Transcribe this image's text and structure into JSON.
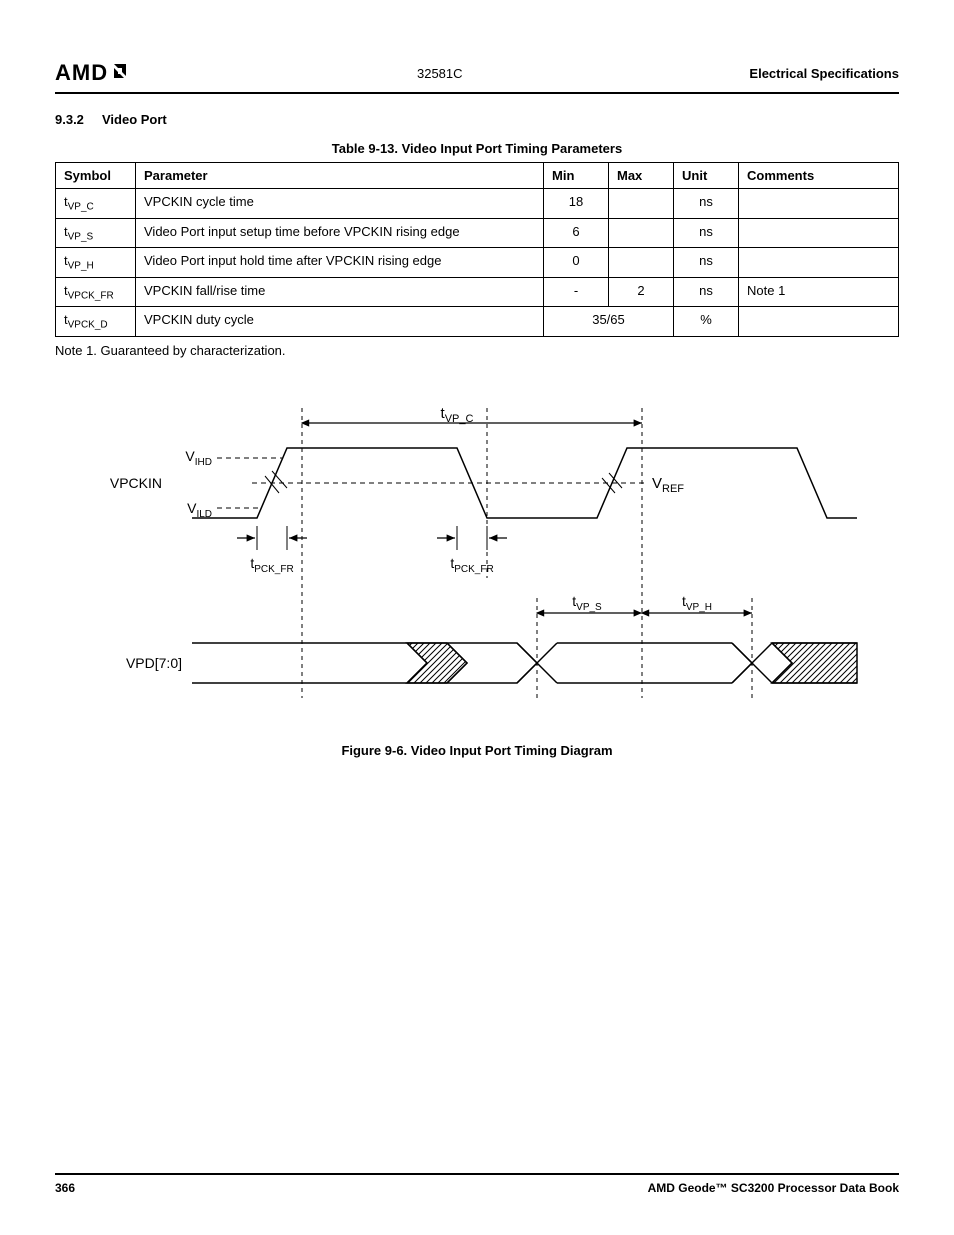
{
  "header": {
    "logo_text": "AMD",
    "doc_code": "32581C",
    "section_label": "Electrical Specifications"
  },
  "subsection": {
    "number": "9.3.2",
    "title": "Video Port"
  },
  "table": {
    "caption": "Table 9-13.  Video Input Port Timing Parameters",
    "headers": {
      "symbol": "Symbol",
      "parameter": "Parameter",
      "min": "Min",
      "max": "Max",
      "unit": "Unit",
      "comments": "Comments"
    },
    "rows": [
      {
        "sym_pre": "t",
        "sym_sub": "VP_C",
        "param": "VPCKIN cycle time",
        "min": "18",
        "max": "",
        "unit": "ns",
        "comments": ""
      },
      {
        "sym_pre": "t",
        "sym_sub": "VP_S",
        "param": "Video Port input setup time before VPCKIN rising edge",
        "min": "6",
        "max": "",
        "unit": "ns",
        "comments": ""
      },
      {
        "sym_pre": "t",
        "sym_sub": "VP_H",
        "param": "Video Port input hold time after VPCKIN rising edge",
        "min": "0",
        "max": "",
        "unit": "ns",
        "comments": ""
      },
      {
        "sym_pre": "t",
        "sym_sub": "VPCK_FR",
        "param": "VPCKIN fall/rise time",
        "min": "-",
        "max": "2",
        "unit": "ns",
        "comments": "Note 1"
      },
      {
        "sym_pre": "t",
        "sym_sub": "VPCK_D",
        "param": "VPCKIN duty cycle",
        "min_max_merged": "35/65",
        "unit": "%",
        "comments": ""
      }
    ],
    "note": "Note 1.   Guaranteed by characterization."
  },
  "figure": {
    "caption": "Figure 9-6.  Video Input Port Timing Diagram",
    "labels": {
      "vpckin": "VPCKIN",
      "vihd_pre": "V",
      "vihd_sub": "IHD",
      "vild_pre": "V",
      "vild_sub": "ILD",
      "vref_pre": "V",
      "vref_sub": "REF",
      "tvpc_pre": "t",
      "tvpc_sub": "VP_C",
      "tpckfr_pre": "t",
      "tpckfr_sub": "PCK_FR",
      "tvps_pre": "t",
      "tvps_sub": "VP_S",
      "tvph_pre": "t",
      "tvph_sub": "VP_H",
      "vpd": "VPD[7:0]"
    },
    "style": {
      "stroke": "#000000",
      "stroke_width": 1.5,
      "dash": "4 4",
      "hatch_spacing": 5
    }
  },
  "footer": {
    "page_num": "366",
    "book_title": "AMD Geode™ SC3200 Processor Data Book"
  }
}
